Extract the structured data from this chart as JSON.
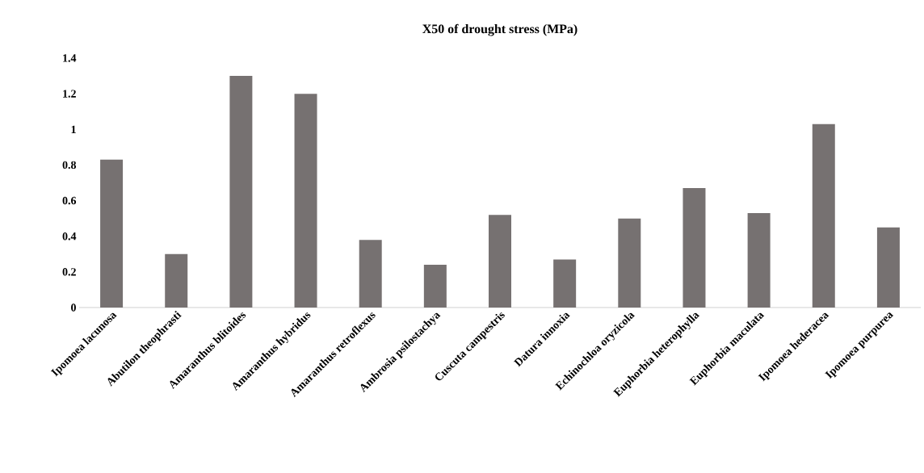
{
  "chart_data": {
    "type": "bar",
    "title": "X50 of drought stress (MPa)",
    "categories": [
      "Ipomoea lacunosa",
      "Abutilon theophrasti",
      "Amaranthus blitoides",
      "Amaranthus hybridus",
      "Amaranthus retroflexus",
      "Ambrosia psilostachya",
      "Cuscuta campestris",
      "Datura innoxia",
      "Echinochloa oryzicola",
      "Euphorbia heterophylla",
      "Euphorbia maculata",
      "Ipomoea hederacea",
      "Ipomoea purpurea"
    ],
    "values": [
      0.83,
      0.3,
      1.3,
      1.2,
      0.38,
      0.24,
      0.52,
      0.27,
      0.5,
      0.67,
      0.53,
      1.03,
      0.45
    ],
    "color": "#767171",
    "ylim": [
      0,
      1.4
    ],
    "yticks": [
      0,
      0.2,
      0.4,
      0.6,
      0.8,
      1,
      1.2,
      1.4
    ],
    "grid": false
  }
}
